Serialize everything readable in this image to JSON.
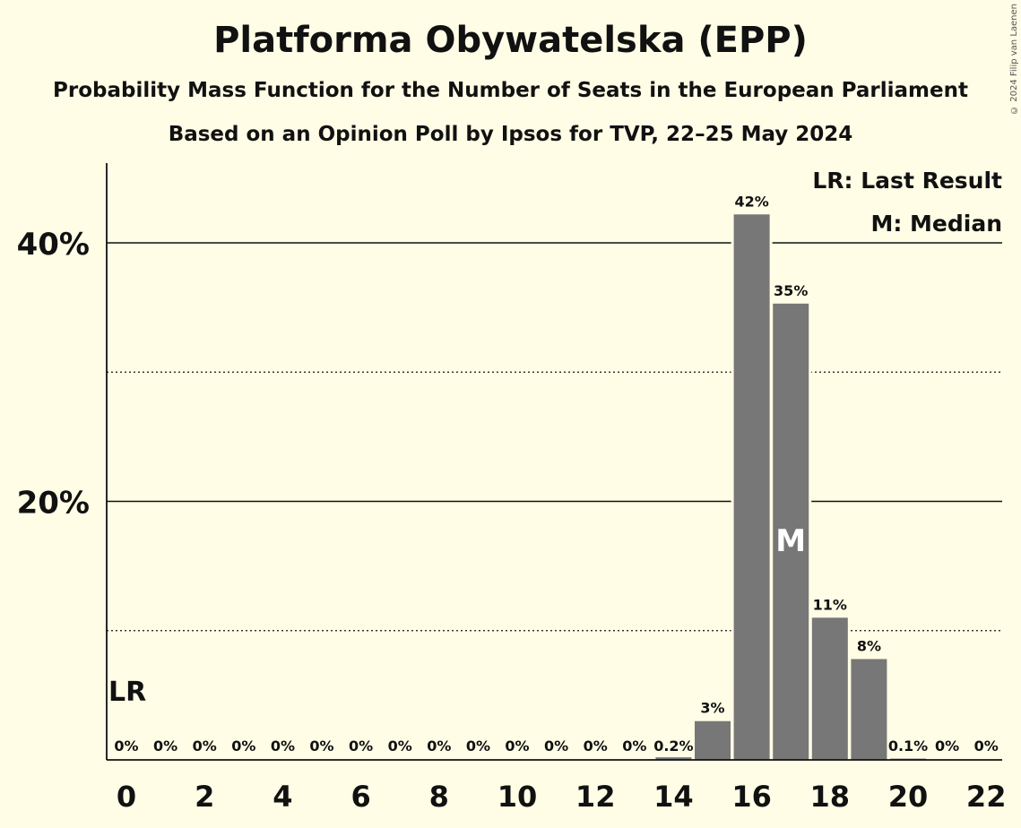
{
  "title": "Platforma Obywatelska (EPP)",
  "subtitle": "Probability Mass Function for the Number of Seats in the European Parliament",
  "subtitle2": "Based on an Opinion Poll by Ipsos for TVP, 22–25 May 2024",
  "copyright": "© 2024 Filip van Laenen",
  "legend": {
    "last_result": "LR: Last Result",
    "median": "M: Median"
  },
  "markers": {
    "last_result_label": "LR",
    "last_result_seat": 0,
    "median_label": "M",
    "median_seat": 17
  },
  "colors": {
    "bar": "#777777",
    "background": "#fffde6",
    "median_text": "#ffffff"
  },
  "chart_data": {
    "type": "bar",
    "categories": [
      0,
      1,
      2,
      3,
      4,
      5,
      6,
      7,
      8,
      9,
      10,
      11,
      12,
      13,
      14,
      15,
      16,
      17,
      18,
      19,
      20,
      21,
      22
    ],
    "values": [
      0,
      0,
      0,
      0,
      0,
      0,
      0,
      0,
      0,
      0,
      0,
      0,
      0,
      0,
      0.2,
      3,
      42.2,
      35.3,
      11,
      7.8,
      0.1,
      0,
      0
    ],
    "data_labels": [
      "0%",
      "0%",
      "0%",
      "0%",
      "0%",
      "0%",
      "0%",
      "0%",
      "0%",
      "0%",
      "0%",
      "0%",
      "0%",
      "0%",
      "0.2%",
      "3%",
      "42%",
      "35%",
      "11%",
      "8%",
      "0.1%",
      "0%",
      "0%"
    ],
    "x_tick_labels": [
      "0",
      "2",
      "4",
      "6",
      "8",
      "10",
      "12",
      "14",
      "16",
      "18",
      "20",
      "22"
    ],
    "y_tick_labels": [
      "20%",
      "40%"
    ],
    "y_ticks": [
      20,
      40
    ],
    "y_minor_ticks": [
      10,
      30
    ],
    "ylim": [
      0,
      46
    ],
    "xlabel": "",
    "ylabel": "",
    "legend_position": "top-right"
  }
}
